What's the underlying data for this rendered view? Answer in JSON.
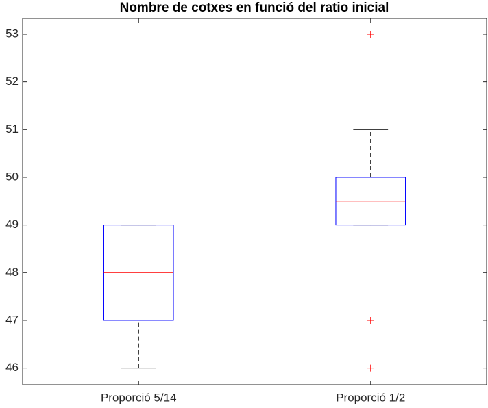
{
  "chart_data": {
    "type": "box",
    "title": "Nombre de cotxes en funció del ratio inicial",
    "categories": [
      "Proporció 5/14",
      "Proporció 1/2"
    ],
    "boxes": [
      {
        "whisker_low": 46,
        "q1": 47,
        "median": 48,
        "q3": 49,
        "whisker_high": 49,
        "outliers": []
      },
      {
        "whisker_low": 49,
        "q1": 49,
        "median": 49.5,
        "q3": 50,
        "whisker_high": 51,
        "outliers": [
          53,
          47,
          46
        ]
      }
    ],
    "box_color": "#0000ff",
    "median_color": "#ff0000",
    "whisker_color": "#000000",
    "outlier_color": "#ff0000",
    "ylim": [
      45.65,
      53.33
    ],
    "yticks": [
      46,
      47,
      48,
      49,
      50,
      51,
      52,
      53
    ]
  }
}
